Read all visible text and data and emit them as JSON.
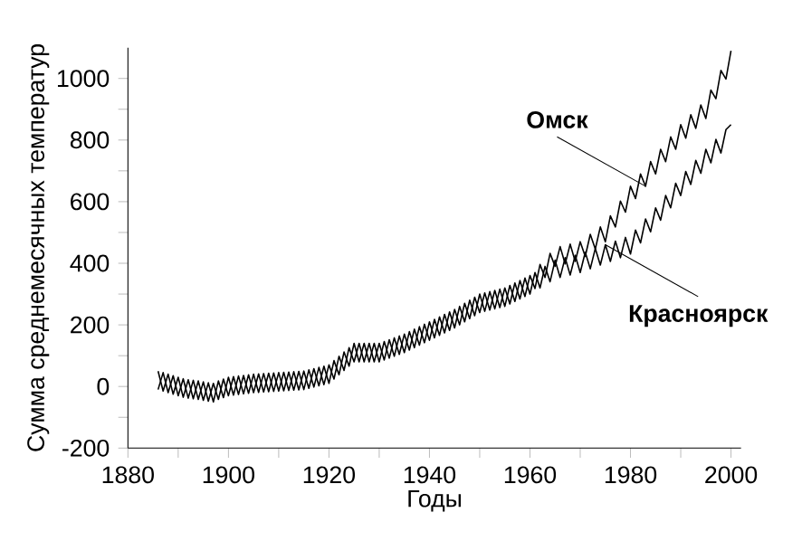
{
  "chart_data": {
    "type": "line",
    "xlabel": "Годы",
    "ylabel": "Сумма среднемесячных температур",
    "xlim": [
      1880,
      2002
    ],
    "ylim": [
      -200,
      1100
    ],
    "xticks": [
      1880,
      {
        "value": 1890,
        "label": null
      },
      1900,
      {
        "value": 1910,
        "label": null
      },
      1920,
      {
        "value": 1930,
        "label": null
      },
      1940,
      {
        "value": 1950,
        "label": null
      },
      1960,
      {
        "value": 1970,
        "label": null
      },
      1980,
      {
        "value": 1990,
        "label": null
      },
      2000
    ],
    "yticks": [
      -200,
      {
        "value": -100,
        "label": null
      },
      0,
      {
        "value": 100,
        "label": null
      },
      200,
      {
        "value": 300,
        "label": null
      },
      400,
      {
        "value": 500,
        "label": null
      },
      600,
      {
        "value": 700,
        "label": null
      },
      800,
      {
        "value": 900,
        "label": null
      },
      1000
    ],
    "line_style": "solid",
    "x": [
      1886,
      1887,
      1888,
      1889,
      1890,
      1891,
      1892,
      1893,
      1894,
      1895,
      1896,
      1897,
      1898,
      1899,
      1900,
      1901,
      1902,
      1903,
      1904,
      1905,
      1906,
      1907,
      1908,
      1909,
      1910,
      1911,
      1912,
      1913,
      1914,
      1915,
      1916,
      1917,
      1918,
      1919,
      1920,
      1921,
      1922,
      1923,
      1924,
      1925,
      1926,
      1927,
      1928,
      1929,
      1930,
      1931,
      1932,
      1933,
      1934,
      1935,
      1936,
      1937,
      1938,
      1939,
      1940,
      1941,
      1942,
      1943,
      1944,
      1945,
      1946,
      1947,
      1948,
      1949,
      1950,
      1951,
      1952,
      1953,
      1954,
      1955,
      1956,
      1957,
      1958,
      1959,
      1960,
      1961,
      1962,
      1963,
      1964,
      1965,
      1966,
      1967,
      1968,
      1969,
      1970,
      1971,
      1972,
      1973,
      1974,
      1975,
      1976,
      1977,
      1978,
      1979,
      1980,
      1981,
      1982,
      1983,
      1984,
      1985,
      1986,
      1987,
      1988,
      1989,
      1990,
      1991,
      1992,
      1993,
      1994,
      1995,
      1996,
      1997,
      1998,
      1999,
      2000
    ],
    "series": [
      {
        "name": "Омск",
        "color": "#000000",
        "values": [
          50,
          -15,
          40,
          -25,
          30,
          -35,
          22,
          -40,
          18,
          -45,
          12,
          -50,
          18,
          -36,
          30,
          -28,
          34,
          -24,
          38,
          -20,
          41,
          -18,
          43,
          -16,
          45,
          -14,
          47,
          -12,
          49,
          -10,
          54,
          -2,
          62,
          6,
          70,
          24,
          98,
          52,
          126,
          80,
          140,
          80,
          140,
          80,
          140,
          86,
          152,
          98,
          164,
          110,
          178,
          126,
          194,
          142,
          210,
          158,
          226,
          174,
          242,
          190,
          260,
          210,
          280,
          230,
          300,
          244,
          308,
          252,
          316,
          260,
          328,
          276,
          344,
          292,
          360,
          318,
          396,
          354,
          432,
          390,
          454,
          398,
          462,
          406,
          470,
          422,
          494,
          446,
          518,
          470,
          554,
          518,
          602,
          566,
          650,
          610,
          690,
          650,
          730,
          690,
          770,
          730,
          810,
          770,
          850,
          806,
          882,
          838,
          914,
          870,
          962,
          934,
          1026,
          998,
          1090
        ]
      },
      {
        "name": "Красноярск",
        "color": "#000000",
        "values": [
          -10,
          45,
          -20,
          35,
          -30,
          25,
          -38,
          20,
          -42,
          15,
          -48,
          10,
          -42,
          24,
          -30,
          32,
          -26,
          36,
          -22,
          40,
          -19,
          42,
          -17,
          44,
          -15,
          46,
          -13,
          48,
          -11,
          50,
          -6,
          58,
          2,
          66,
          10,
          84,
          38,
          112,
          66,
          140,
          80,
          140,
          80,
          140,
          80,
          146,
          92,
          158,
          104,
          170,
          118,
          186,
          134,
          202,
          150,
          218,
          166,
          234,
          182,
          250,
          200,
          270,
          220,
          290,
          240,
          304,
          248,
          312,
          256,
          320,
          268,
          336,
          284,
          352,
          300,
          370,
          320,
          390,
          340,
          410,
          354,
          418,
          362,
          426,
          370,
          436,
          382,
          448,
          394,
          460,
          406,
          472,
          418,
          484,
          430,
          508,
          466,
          544,
          502,
          580,
          540,
          620,
          580,
          660,
          620,
          698,
          656,
          734,
          692,
          770,
          726,
          802,
          758,
          834,
          850
        ]
      }
    ]
  }
}
